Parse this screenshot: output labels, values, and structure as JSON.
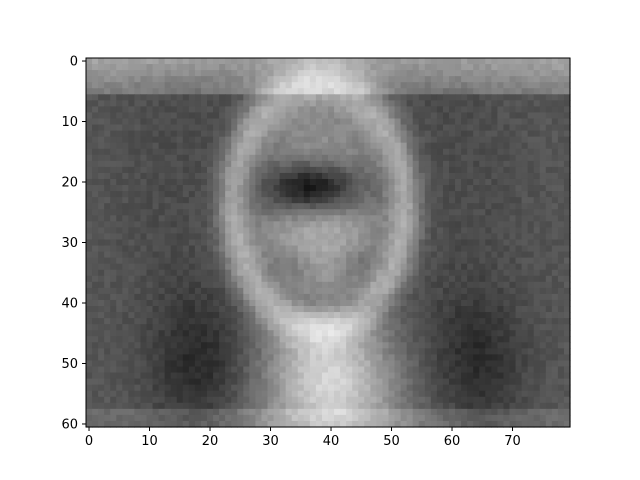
{
  "chart_data": {
    "type": "heatmap",
    "title": "",
    "xlabel": "",
    "ylabel": "",
    "colormap": "gray",
    "image_size": {
      "columns": 80,
      "rows": 61
    },
    "xlim": [
      -0.5,
      79.5
    ],
    "ylim": [
      60.5,
      -0.5
    ],
    "x_ticks": [
      0,
      10,
      20,
      30,
      40,
      50,
      60,
      70
    ],
    "y_ticks": [
      0,
      10,
      20,
      30,
      40,
      50,
      60
    ],
    "x_tick_labels": [
      "0",
      "10",
      "20",
      "30",
      "40",
      "50",
      "60",
      "70"
    ],
    "y_tick_labels": [
      "0",
      "10",
      "20",
      "30",
      "40",
      "50",
      "60"
    ],
    "features": {
      "background_gray": 88,
      "top_band_gray": 165,
      "face_center": [
        38,
        24
      ],
      "face_bright_gray": 225,
      "dark_hair_halo_gray": 25,
      "dark_eye_band_center": [
        37,
        21
      ],
      "neck_bright_gray": 215
    }
  }
}
